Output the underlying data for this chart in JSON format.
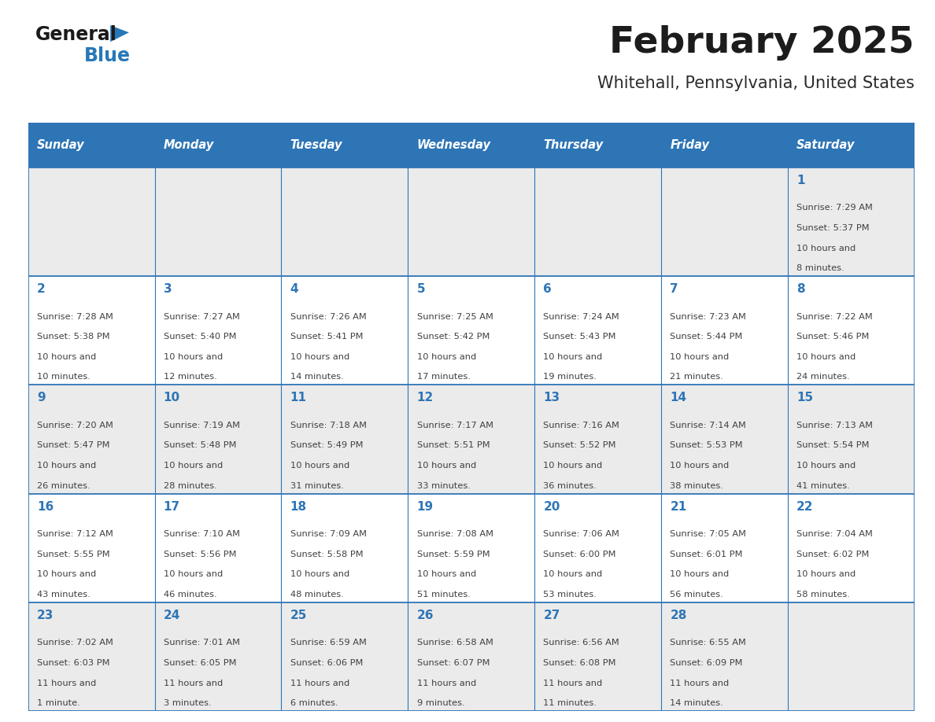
{
  "title": "February 2025",
  "subtitle": "Whitehall, Pennsylvania, United States",
  "header_color": "#2e75b6",
  "header_text_color": "#ffffff",
  "day_names": [
    "Sunday",
    "Monday",
    "Tuesday",
    "Wednesday",
    "Thursday",
    "Friday",
    "Saturday"
  ],
  "bg_color": "#ffffff",
  "cell_bg_row0": "#ebebeb",
  "cell_bg_row1": "#ffffff",
  "cell_line_color": "#2e75b6",
  "day_number_color": "#2e75b6",
  "text_color": "#404040",
  "calendar": [
    [
      null,
      null,
      null,
      null,
      null,
      null,
      {
        "day": 1,
        "sunrise": "7:29 AM",
        "sunset": "5:37 PM",
        "daylight": "10 hours and 8 minutes."
      }
    ],
    [
      {
        "day": 2,
        "sunrise": "7:28 AM",
        "sunset": "5:38 PM",
        "daylight": "10 hours and 10 minutes."
      },
      {
        "day": 3,
        "sunrise": "7:27 AM",
        "sunset": "5:40 PM",
        "daylight": "10 hours and 12 minutes."
      },
      {
        "day": 4,
        "sunrise": "7:26 AM",
        "sunset": "5:41 PM",
        "daylight": "10 hours and 14 minutes."
      },
      {
        "day": 5,
        "sunrise": "7:25 AM",
        "sunset": "5:42 PM",
        "daylight": "10 hours and 17 minutes."
      },
      {
        "day": 6,
        "sunrise": "7:24 AM",
        "sunset": "5:43 PM",
        "daylight": "10 hours and 19 minutes."
      },
      {
        "day": 7,
        "sunrise": "7:23 AM",
        "sunset": "5:44 PM",
        "daylight": "10 hours and 21 minutes."
      },
      {
        "day": 8,
        "sunrise": "7:22 AM",
        "sunset": "5:46 PM",
        "daylight": "10 hours and 24 minutes."
      }
    ],
    [
      {
        "day": 9,
        "sunrise": "7:20 AM",
        "sunset": "5:47 PM",
        "daylight": "10 hours and 26 minutes."
      },
      {
        "day": 10,
        "sunrise": "7:19 AM",
        "sunset": "5:48 PM",
        "daylight": "10 hours and 28 minutes."
      },
      {
        "day": 11,
        "sunrise": "7:18 AM",
        "sunset": "5:49 PM",
        "daylight": "10 hours and 31 minutes."
      },
      {
        "day": 12,
        "sunrise": "7:17 AM",
        "sunset": "5:51 PM",
        "daylight": "10 hours and 33 minutes."
      },
      {
        "day": 13,
        "sunrise": "7:16 AM",
        "sunset": "5:52 PM",
        "daylight": "10 hours and 36 minutes."
      },
      {
        "day": 14,
        "sunrise": "7:14 AM",
        "sunset": "5:53 PM",
        "daylight": "10 hours and 38 minutes."
      },
      {
        "day": 15,
        "sunrise": "7:13 AM",
        "sunset": "5:54 PM",
        "daylight": "10 hours and 41 minutes."
      }
    ],
    [
      {
        "day": 16,
        "sunrise": "7:12 AM",
        "sunset": "5:55 PM",
        "daylight": "10 hours and 43 minutes."
      },
      {
        "day": 17,
        "sunrise": "7:10 AM",
        "sunset": "5:56 PM",
        "daylight": "10 hours and 46 minutes."
      },
      {
        "day": 18,
        "sunrise": "7:09 AM",
        "sunset": "5:58 PM",
        "daylight": "10 hours and 48 minutes."
      },
      {
        "day": 19,
        "sunrise": "7:08 AM",
        "sunset": "5:59 PM",
        "daylight": "10 hours and 51 minutes."
      },
      {
        "day": 20,
        "sunrise": "7:06 AM",
        "sunset": "6:00 PM",
        "daylight": "10 hours and 53 minutes."
      },
      {
        "day": 21,
        "sunrise": "7:05 AM",
        "sunset": "6:01 PM",
        "daylight": "10 hours and 56 minutes."
      },
      {
        "day": 22,
        "sunrise": "7:04 AM",
        "sunset": "6:02 PM",
        "daylight": "10 hours and 58 minutes."
      }
    ],
    [
      {
        "day": 23,
        "sunrise": "7:02 AM",
        "sunset": "6:03 PM",
        "daylight": "11 hours and 1 minute."
      },
      {
        "day": 24,
        "sunrise": "7:01 AM",
        "sunset": "6:05 PM",
        "daylight": "11 hours and 3 minutes."
      },
      {
        "day": 25,
        "sunrise": "6:59 AM",
        "sunset": "6:06 PM",
        "daylight": "11 hours and 6 minutes."
      },
      {
        "day": 26,
        "sunrise": "6:58 AM",
        "sunset": "6:07 PM",
        "daylight": "11 hours and 9 minutes."
      },
      {
        "day": 27,
        "sunrise": "6:56 AM",
        "sunset": "6:08 PM",
        "daylight": "11 hours and 11 minutes."
      },
      {
        "day": 28,
        "sunrise": "6:55 AM",
        "sunset": "6:09 PM",
        "daylight": "11 hours and 14 minutes."
      },
      null
    ]
  ]
}
